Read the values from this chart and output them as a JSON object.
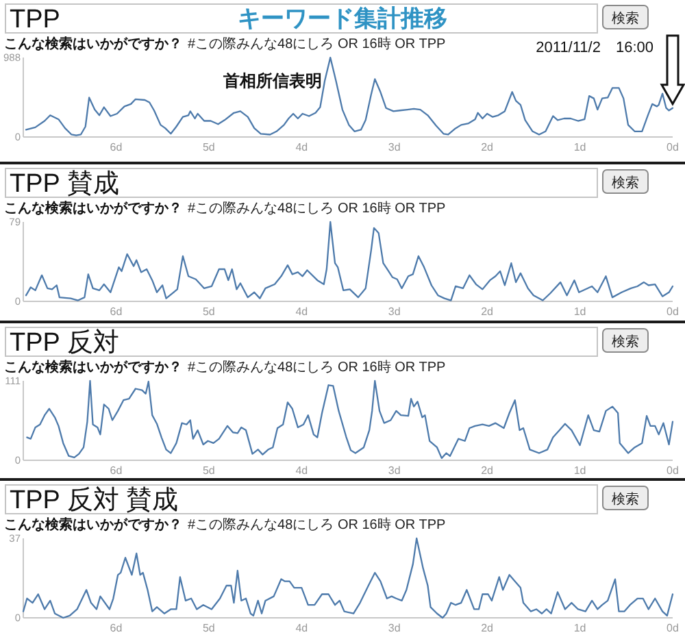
{
  "chart_data": [
    {
      "type": "line",
      "title": "TPP",
      "color": "#4d7aab",
      "xlim": [
        7,
        0
      ],
      "xticks": [
        {
          "value": 6,
          "label": "6d"
        },
        {
          "value": 5,
          "label": "5d"
        },
        {
          "value": 4,
          "label": "4d"
        },
        {
          "value": 3,
          "label": "3d"
        },
        {
          "value": 2,
          "label": "2d"
        },
        {
          "value": 1,
          "label": "1d"
        },
        {
          "value": 0,
          "label": "0d"
        }
      ],
      "ylim": [
        0,
        988
      ],
      "yticks": [
        0,
        988
      ],
      "annotations": [
        "検索",
        "こんな検索はいかがですか？",
        "#この際みんな48にしろ OR 16時 OR TPP",
        "キーワード集計推移",
        "2011/11/2　16:00",
        {
          "text": "首相所信表明",
          "x": 3.69,
          "y": 988
        }
      ],
      "x": [
        6.97,
        6.87,
        6.77,
        6.71,
        6.62,
        6.55,
        6.48,
        6.43,
        6.38,
        6.33,
        6.29,
        6.23,
        6.18,
        6.13,
        6.06,
        5.99,
        5.91,
        5.84,
        5.79,
        5.69,
        5.64,
        5.59,
        5.52,
        5.47,
        5.41,
        5.35,
        5.28,
        5.22,
        5.2,
        5.15,
        5.12,
        5.05,
        4.98,
        4.9,
        4.83,
        4.73,
        4.66,
        4.58,
        4.51,
        4.44,
        4.34,
        4.27,
        4.19,
        4.14,
        4.09,
        4.04,
        3.99,
        3.92,
        3.85,
        3.8,
        3.75,
        3.69,
        3.63,
        3.56,
        3.49,
        3.43,
        3.36,
        3.31,
        3.25,
        3.21,
        3.15,
        3.09,
        3.01,
        2.94,
        2.86,
        2.79,
        2.72,
        2.64,
        2.55,
        2.47,
        2.42,
        2.35,
        2.28,
        2.2,
        2.13,
        2.1,
        2.05,
        2.0,
        1.94,
        1.88,
        1.81,
        1.73,
        1.69,
        1.64,
        1.59,
        1.51,
        1.44,
        1.37,
        1.29,
        1.24,
        1.17,
        1.1,
        1.02,
        0.95,
        0.9,
        0.85,
        0.81,
        0.76,
        0.7,
        0.65,
        0.58,
        0.53,
        0.48,
        0.41,
        0.33,
        0.27,
        0.22,
        0.17,
        0.15,
        0.11,
        0.07,
        0.04,
        0
      ],
      "values": [
        90,
        120,
        200,
        270,
        220,
        110,
        30,
        20,
        30,
        130,
        490,
        340,
        270,
        370,
        260,
        290,
        380,
        410,
        470,
        460,
        430,
        330,
        150,
        110,
        40,
        130,
        250,
        270,
        320,
        230,
        290,
        200,
        200,
        160,
        210,
        300,
        320,
        250,
        110,
        40,
        30,
        70,
        150,
        230,
        290,
        230,
        290,
        260,
        300,
        370,
        700,
        988,
        700,
        340,
        150,
        70,
        90,
        210,
        530,
        720,
        560,
        360,
        320,
        330,
        340,
        350,
        340,
        270,
        140,
        40,
        30,
        100,
        150,
        170,
        220,
        300,
        230,
        290,
        250,
        270,
        320,
        560,
        450,
        400,
        210,
        70,
        30,
        70,
        260,
        210,
        230,
        230,
        200,
        220,
        510,
        480,
        340,
        480,
        490,
        610,
        610,
        480,
        150,
        70,
        70,
        260,
        410,
        380,
        400,
        540,
        360,
        330,
        360
      ]
    },
    {
      "type": "line",
      "title": "TPP 賛成",
      "color": "#4d7aab",
      "xlim": [
        7,
        0
      ],
      "xticks": [
        {
          "value": 6,
          "label": "6d"
        },
        {
          "value": 5,
          "label": "5d"
        },
        {
          "value": 4,
          "label": "4d"
        },
        {
          "value": 3,
          "label": "3d"
        },
        {
          "value": 2,
          "label": "2d"
        },
        {
          "value": 1,
          "label": "1d"
        },
        {
          "value": 0,
          "label": "0d"
        }
      ],
      "ylim": [
        0,
        79
      ],
      "yticks": [
        0,
        79
      ],
      "annotations": [
        "検索",
        "こんな検索はいかがですか？",
        "#この際みんな48にしろ OR 16時 OR TPP"
      ],
      "x": [
        6.97,
        6.92,
        6.87,
        6.8,
        6.74,
        6.69,
        6.64,
        6.61,
        6.49,
        6.41,
        6.34,
        6.3,
        6.25,
        6.18,
        6.13,
        6.06,
        5.97,
        5.94,
        5.88,
        5.81,
        5.78,
        5.73,
        5.67,
        5.61,
        5.56,
        5.5,
        5.46,
        5.34,
        5.28,
        5.22,
        5.14,
        5.05,
        4.97,
        4.89,
        4.83,
        4.79,
        4.75,
        4.7,
        4.66,
        4.58,
        4.51,
        4.45,
        4.39,
        4.29,
        4.22,
        4.15,
        4.1,
        4.04,
        3.99,
        3.94,
        3.83,
        3.76,
        3.73,
        3.69,
        3.64,
        3.61,
        3.55,
        3.48,
        3.39,
        3.31,
        3.25,
        3.22,
        3.17,
        3.12,
        3.07,
        3.02,
        2.97,
        2.92,
        2.85,
        2.8,
        2.74,
        2.68,
        2.6,
        2.53,
        2.46,
        2.39,
        2.34,
        2.26,
        2.19,
        2.12,
        2.05,
        1.97,
        1.91,
        1.86,
        1.81,
        1.74,
        1.69,
        1.64,
        1.56,
        1.5,
        1.4,
        1.32,
        1.21,
        1.14,
        1.06,
        1.01,
        0.87,
        0.81,
        0.72,
        0.65,
        0.55,
        0.45,
        0.38,
        0.31,
        0.26,
        0.19,
        0.11,
        0.04,
        0
      ],
      "values": [
        6,
        14,
        11,
        26,
        13,
        12,
        16,
        4,
        3,
        1,
        4,
        27,
        13,
        11,
        17,
        9,
        34,
        30,
        47,
        35,
        41,
        29,
        32,
        21,
        9,
        16,
        3,
        12,
        45,
        25,
        22,
        13,
        15,
        32,
        32,
        21,
        32,
        12,
        18,
        4,
        9,
        3,
        13,
        17,
        25,
        36,
        27,
        29,
        25,
        31,
        21,
        17,
        32,
        79,
        38,
        34,
        11,
        12,
        4,
        13,
        51,
        73,
        68,
        38,
        31,
        24,
        22,
        13,
        25,
        27,
        45,
        34,
        16,
        6,
        3,
        1,
        15,
        13,
        26,
        17,
        12,
        21,
        25,
        30,
        16,
        38,
        19,
        28,
        13,
        6,
        1,
        8,
        19,
        6,
        21,
        9,
        15,
        9,
        25,
        4,
        9,
        13,
        15,
        19,
        16,
        17,
        5,
        9,
        15
      ]
    },
    {
      "type": "line",
      "title": "TPP 反対",
      "color": "#4d7aab",
      "xlim": [
        7,
        0
      ],
      "xticks": [
        {
          "value": 6,
          "label": "6d"
        },
        {
          "value": 5,
          "label": "5d"
        },
        {
          "value": 4,
          "label": "4d"
        },
        {
          "value": 3,
          "label": "3d"
        },
        {
          "value": 2,
          "label": "2d"
        },
        {
          "value": 1,
          "label": "1d"
        },
        {
          "value": 0,
          "label": "0d"
        }
      ],
      "ylim": [
        0,
        111
      ],
      "yticks": [
        0,
        111
      ],
      "annotations": [
        "検索",
        "こんな検索はいかがですか？",
        "#この際みんな48にしろ OR 16時 OR TPP"
      ],
      "x": [
        6.96,
        6.92,
        6.87,
        6.82,
        6.77,
        6.72,
        6.66,
        6.62,
        6.57,
        6.51,
        6.45,
        6.4,
        6.35,
        6.31,
        6.28,
        6.25,
        6.2,
        6.17,
        6.13,
        6.08,
        6.04,
        5.98,
        5.92,
        5.86,
        5.79,
        5.72,
        5.68,
        5.65,
        5.61,
        5.56,
        5.51,
        5.46,
        5.41,
        5.35,
        5.29,
        5.24,
        5.2,
        5.17,
        5.12,
        5.06,
        5.01,
        4.95,
        4.89,
        4.8,
        4.74,
        4.69,
        4.65,
        4.6,
        4.53,
        4.47,
        4.42,
        4.36,
        4.31,
        4.26,
        4.2,
        4.15,
        4.1,
        4.04,
        3.98,
        3.93,
        3.87,
        3.83,
        3.78,
        3.71,
        3.66,
        3.6,
        3.52,
        3.47,
        3.42,
        3.33,
        3.27,
        3.24,
        3.21,
        3.16,
        3.11,
        3.04,
        2.98,
        2.93,
        2.85,
        2.82,
        2.79,
        2.75,
        2.7,
        2.67,
        2.62,
        2.54,
        2.49,
        2.44,
        2.4,
        2.31,
        2.24,
        2.19,
        2.13,
        2.05,
        1.98,
        1.91,
        1.86,
        1.82,
        1.76,
        1.7,
        1.65,
        1.61,
        1.54,
        1.44,
        1.35,
        1.29,
        1.22,
        1.16,
        1.09,
        1.0,
        0.91,
        0.85,
        0.79,
        0.72,
        0.65,
        0.59,
        0.57,
        0.48,
        0.41,
        0.33,
        0.28,
        0.24,
        0.19,
        0.15,
        0.1,
        0.04,
        0
      ],
      "values": [
        32,
        30,
        46,
        50,
        63,
        72,
        60,
        48,
        24,
        6,
        4,
        9,
        18,
        54,
        111,
        50,
        46,
        36,
        78,
        72,
        56,
        69,
        84,
        86,
        100,
        98,
        93,
        110,
        63,
        51,
        32,
        15,
        10,
        24,
        52,
        50,
        56,
        30,
        42,
        22,
        27,
        24,
        30,
        48,
        39,
        38,
        46,
        42,
        9,
        15,
        8,
        15,
        18,
        45,
        50,
        81,
        72,
        46,
        50,
        63,
        36,
        32,
        66,
        105,
        104,
        69,
        33,
        14,
        10,
        18,
        42,
        69,
        111,
        69,
        52,
        56,
        69,
        63,
        62,
        86,
        75,
        82,
        60,
        63,
        27,
        18,
        3,
        10,
        6,
        30,
        27,
        45,
        48,
        50,
        48,
        52,
        48,
        45,
        66,
        84,
        42,
        45,
        15,
        10,
        15,
        32,
        42,
        51,
        42,
        21,
        63,
        42,
        40,
        69,
        75,
        66,
        24,
        10,
        18,
        24,
        62,
        48,
        48,
        36,
        52,
        22,
        54
      ]
    },
    {
      "type": "line",
      "title": "TPP 反対 賛成",
      "color": "#4d7aab",
      "xlim": [
        7,
        0
      ],
      "xticks": [
        {
          "value": 6,
          "label": "6d"
        },
        {
          "value": 5,
          "label": "5d"
        },
        {
          "value": 4,
          "label": "4d"
        },
        {
          "value": 3,
          "label": "3d"
        },
        {
          "value": 2,
          "label": "2d"
        },
        {
          "value": 1,
          "label": "1d"
        },
        {
          "value": 0,
          "label": "0d"
        }
      ],
      "ylim": [
        0,
        37
      ],
      "yticks": [
        0,
        37
      ],
      "annotations": [
        "検索",
        "こんな検索はいかがですか？",
        "#この際みんな48にしろ OR 16時 OR TPP"
      ],
      "x": [
        7.0,
        6.96,
        6.9,
        6.84,
        6.77,
        6.71,
        6.66,
        6.57,
        6.5,
        6.42,
        6.32,
        6.27,
        6.21,
        6.17,
        6.07,
        6.03,
        5.98,
        5.95,
        5.9,
        5.83,
        5.78,
        5.74,
        5.71,
        5.66,
        5.61,
        5.56,
        5.48,
        5.41,
        5.35,
        5.31,
        5.25,
        5.19,
        5.13,
        5.06,
        4.97,
        4.88,
        4.81,
        4.76,
        4.73,
        4.69,
        4.65,
        4.6,
        4.55,
        4.52,
        4.47,
        4.43,
        4.39,
        4.3,
        4.22,
        4.18,
        4.13,
        4.08,
        4.0,
        3.93,
        3.86,
        3.78,
        3.71,
        3.64,
        3.59,
        3.54,
        3.44,
        3.37,
        3.28,
        3.21,
        3.15,
        3.08,
        3.03,
        2.98,
        2.92,
        2.87,
        2.8,
        2.76,
        2.69,
        2.64,
        2.61,
        2.54,
        2.48,
        2.44,
        2.39,
        2.34,
        2.28,
        2.22,
        2.14,
        2.09,
        2.05,
        1.99,
        1.95,
        1.87,
        1.83,
        1.76,
        1.7,
        1.64,
        1.61,
        1.53,
        1.47,
        1.41,
        1.36,
        1.31,
        1.24,
        1.16,
        1.09,
        1.02,
        0.94,
        0.87,
        0.81,
        0.76,
        0.7,
        0.62,
        0.58,
        0.52,
        0.46,
        0.38,
        0.32,
        0.26,
        0.19,
        0.11,
        0.06,
        0
      ],
      "values": [
        3,
        9,
        7,
        11,
        4,
        8,
        2,
        0,
        1,
        4,
        13,
        7,
        4,
        10,
        4,
        9,
        20,
        21,
        28,
        20,
        30,
        20,
        21,
        13,
        3,
        5,
        2,
        4,
        4,
        19,
        8,
        9,
        4,
        6,
        4,
        9,
        15,
        15,
        7,
        22,
        8,
        9,
        2,
        1,
        8,
        2,
        8,
        10,
        18,
        17,
        17,
        14,
        14,
        6,
        6,
        11,
        11,
        6,
        8,
        3,
        2,
        7,
        15,
        21,
        17,
        9,
        10,
        9,
        8,
        13,
        25,
        37,
        23,
        15,
        5,
        2,
        0,
        2,
        7,
        6,
        7,
        13,
        4,
        4,
        11,
        11,
        8,
        19,
        13,
        20,
        17,
        14,
        7,
        3,
        4,
        2,
        4,
        2,
        12,
        4,
        7,
        4,
        3,
        8,
        4,
        6,
        8,
        18,
        3,
        3,
        6,
        9,
        9,
        4,
        9,
        3,
        1,
        11
      ]
    }
  ]
}
